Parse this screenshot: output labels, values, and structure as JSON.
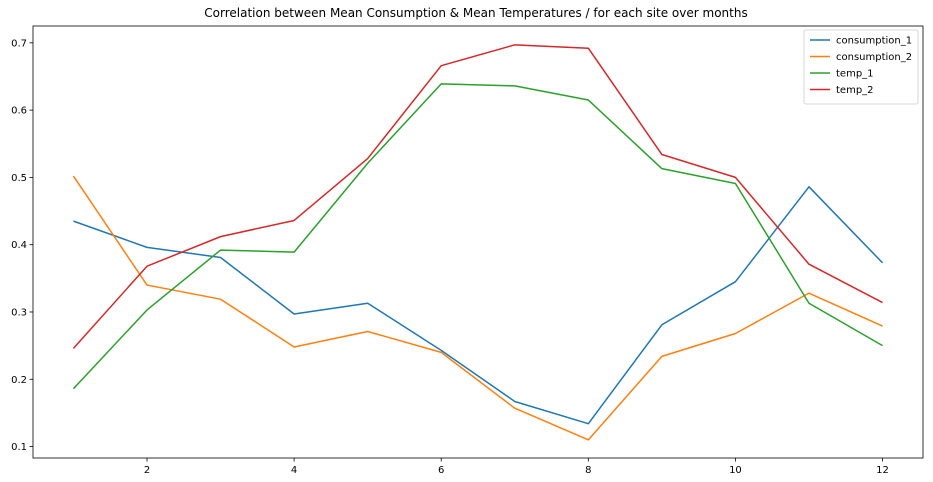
{
  "chart_data": {
    "type": "line",
    "title": "Correlation between Mean Consumption & Mean Temperatures / for each site over months",
    "xlabel": "",
    "ylabel": "",
    "x": [
      1,
      2,
      3,
      4,
      5,
      6,
      7,
      8,
      9,
      10,
      11,
      12
    ],
    "xlim": [
      0.45,
      12.55
    ],
    "ylim": [
      0.083,
      0.725
    ],
    "x_ticks": [
      2,
      4,
      6,
      8,
      10,
      12
    ],
    "x_tick_labels": [
      "2",
      "4",
      "6",
      "8",
      "10",
      "12"
    ],
    "y_ticks": [
      0.1,
      0.2,
      0.3,
      0.4,
      0.5,
      0.6,
      0.7
    ],
    "y_tick_labels": [
      "0.1",
      "0.2",
      "0.3",
      "0.4",
      "0.5",
      "0.6",
      "0.7"
    ],
    "grid": false,
    "legend_position": "top-right",
    "series": [
      {
        "name": "consumption_1",
        "color": "#1f77b4",
        "values": [
          0.435,
          0.396,
          0.381,
          0.297,
          0.313,
          0.243,
          0.167,
          0.134,
          0.281,
          0.345,
          0.486,
          0.373
        ]
      },
      {
        "name": "consumption_2",
        "color": "#ff7f0e",
        "values": [
          0.502,
          0.34,
          0.319,
          0.248,
          0.271,
          0.24,
          0.157,
          0.11,
          0.234,
          0.268,
          0.328,
          0.279
        ]
      },
      {
        "name": "temp_1",
        "color": "#2ca02c",
        "values": [
          0.186,
          0.303,
          0.392,
          0.389,
          0.521,
          0.639,
          0.636,
          0.615,
          0.513,
          0.491,
          0.313,
          0.25
        ]
      },
      {
        "name": "temp_2",
        "color": "#d62728",
        "values": [
          0.246,
          0.368,
          0.412,
          0.436,
          0.528,
          0.666,
          0.697,
          0.692,
          0.534,
          0.5,
          0.371,
          0.314
        ]
      }
    ]
  }
}
